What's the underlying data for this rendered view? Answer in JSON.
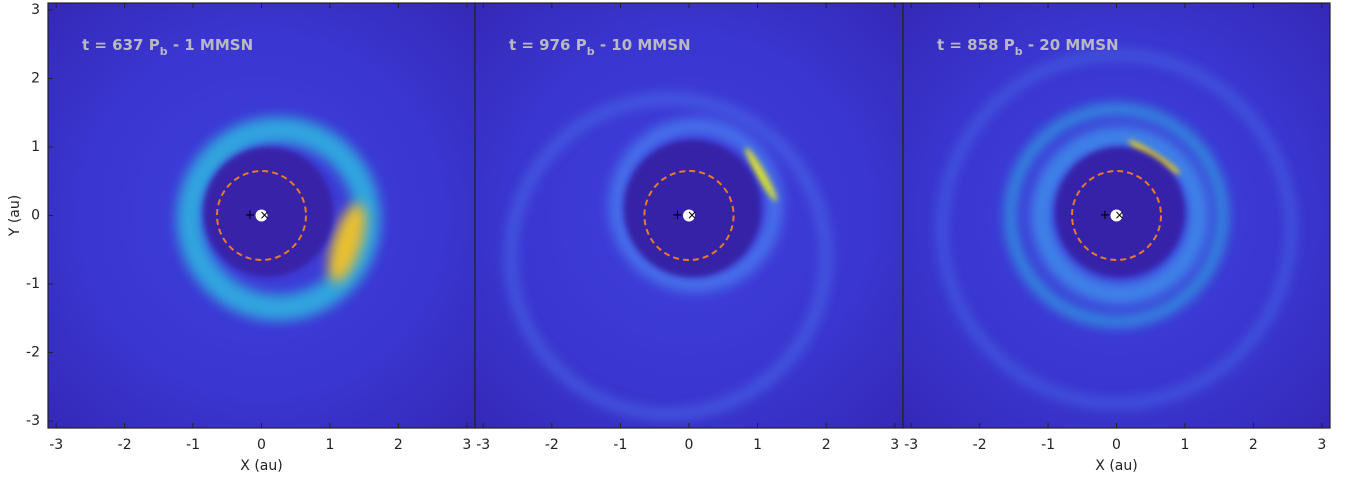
{
  "chart_data": [
    {
      "type": "density-map",
      "title_parts": [
        "t = 637 P",
        "b",
        " - 1 MMSN"
      ],
      "xlabel": "X (au)",
      "ylabel": "Y (au)",
      "xlim": [
        -3.12,
        3.12
      ],
      "ylim": [
        -3.1,
        3.1
      ],
      "xticks": [
        -3,
        -2,
        -1,
        0,
        1,
        2,
        3
      ],
      "yticks": [
        -3,
        -2,
        -1,
        0,
        1,
        2,
        3
      ],
      "reference_circle_radius": 0.65
    },
    {
      "type": "density-map",
      "title_parts": [
        "t = 976 P",
        "b",
        " - 10 MMSN"
      ],
      "xlim": [
        -3.12,
        3.12
      ],
      "ylim": [
        -3.1,
        3.1
      ],
      "xticks": [
        -3,
        -2,
        -1,
        0,
        1,
        2,
        3
      ],
      "reference_circle_radius": 0.65
    },
    {
      "type": "density-map",
      "title_parts": [
        "t = 858 P",
        "b",
        " - 20 MMSN"
      ],
      "xlabel": "X (au)",
      "xlim": [
        -3.12,
        3.12
      ],
      "ylim": [
        -3.1,
        3.1
      ],
      "xticks": [
        -3,
        -2,
        -1,
        0,
        1,
        2,
        3
      ],
      "reference_circle_radius": 0.65
    }
  ]
}
